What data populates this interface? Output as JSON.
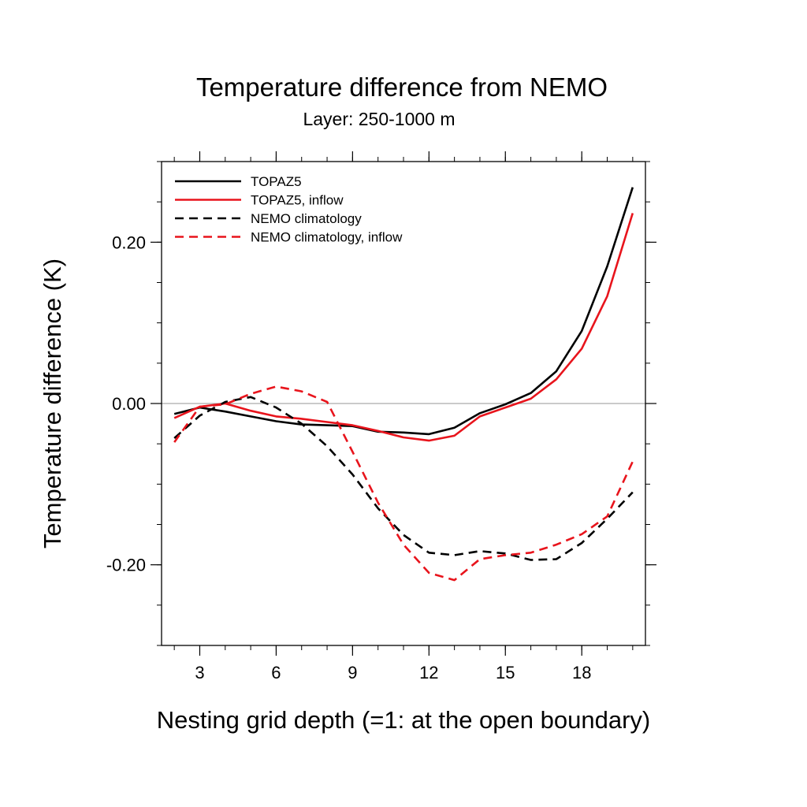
{
  "chart_data": {
    "type": "line",
    "title": "Temperature difference from NEMO",
    "subtitle": "Layer: 250-1000 m",
    "xlabel": "Nesting grid depth (=1: at the open boundary)",
    "ylabel": "Temperature difference (K)",
    "xlim": [
      1.5,
      20.5
    ],
    "ylim": [
      -0.3,
      0.3
    ],
    "xticks": [
      3,
      6,
      9,
      12,
      15,
      18
    ],
    "xtick_labels": [
      "3",
      "6",
      "9",
      "12",
      "15",
      "18"
    ],
    "yticks": [
      -0.2,
      0.0,
      0.2
    ],
    "ytick_labels": [
      "-0.20",
      "0.00",
      "0.20"
    ],
    "reference_line": 0.0,
    "legend_position": "top-left",
    "x": [
      2,
      3,
      4,
      5,
      6,
      7,
      8,
      9,
      10,
      11,
      12,
      13,
      14,
      15,
      16,
      17,
      18,
      19,
      20
    ],
    "series": [
      {
        "name": "TOPAZ5",
        "color": "#000000",
        "dash": "solid",
        "values": [
          -0.013,
          -0.005,
          -0.01,
          -0.016,
          -0.022,
          -0.026,
          -0.027,
          -0.028,
          -0.035,
          -0.036,
          -0.038,
          -0.03,
          -0.012,
          -0.001,
          0.013,
          0.04,
          0.09,
          0.17,
          0.268
        ]
      },
      {
        "name": "TOPAZ5, inflow",
        "color": "#e8141c",
        "dash": "solid",
        "values": [
          -0.018,
          -0.004,
          0.0,
          -0.009,
          -0.016,
          -0.019,
          -0.023,
          -0.027,
          -0.034,
          -0.042,
          -0.046,
          -0.04,
          -0.016,
          -0.005,
          0.006,
          0.03,
          0.068,
          0.133,
          0.236
        ]
      },
      {
        "name": "NEMO climatology",
        "color": "#000000",
        "dash": "dashed",
        "values": [
          -0.043,
          -0.015,
          0.002,
          0.008,
          -0.005,
          -0.025,
          -0.053,
          -0.088,
          -0.13,
          -0.163,
          -0.185,
          -0.188,
          -0.183,
          -0.186,
          -0.194,
          -0.193,
          -0.173,
          -0.143,
          -0.11
        ]
      },
      {
        "name": "NEMO climatology, inflow",
        "color": "#e8141c",
        "dash": "dashed",
        "values": [
          -0.048,
          -0.004,
          -0.001,
          0.012,
          0.021,
          0.015,
          0.002,
          -0.06,
          -0.123,
          -0.175,
          -0.21,
          -0.219,
          -0.193,
          -0.188,
          -0.185,
          -0.175,
          -0.162,
          -0.14,
          -0.072
        ]
      }
    ]
  }
}
